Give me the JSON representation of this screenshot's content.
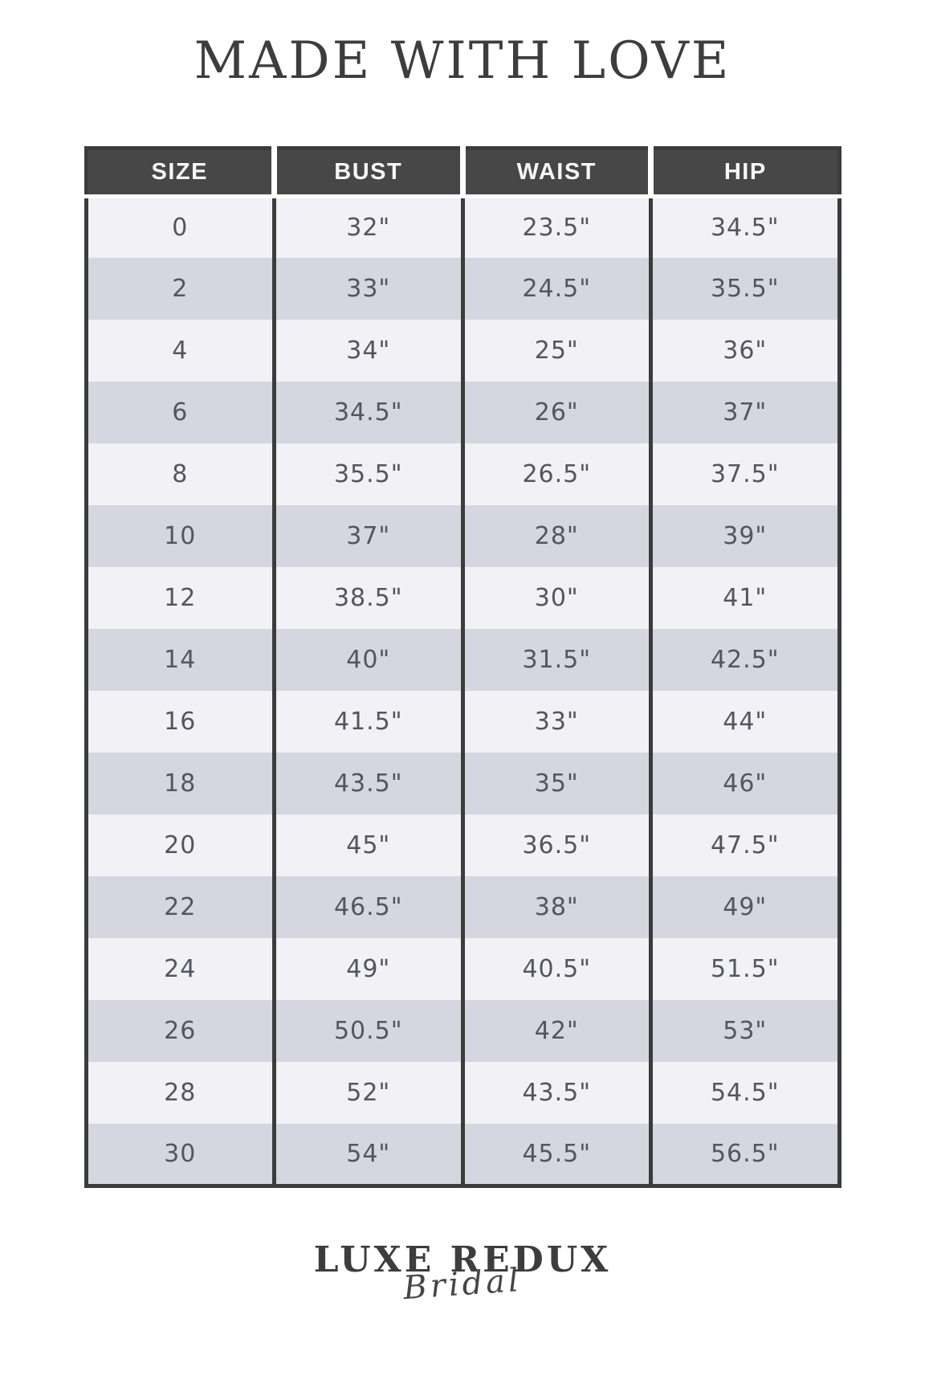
{
  "page": {
    "title": "MADE WITH LOVE",
    "background_color": "#ffffff"
  },
  "table": {
    "columns": [
      "SIZE",
      "BUST",
      "WAIST",
      "HIP"
    ],
    "rows": [
      [
        "0",
        "32\"",
        "23.5\"",
        "34.5\""
      ],
      [
        "2",
        "33\"",
        "24.5\"",
        "35.5\""
      ],
      [
        "4",
        "34\"",
        "25\"",
        "36\""
      ],
      [
        "6",
        "34.5\"",
        "26\"",
        "37\""
      ],
      [
        "8",
        "35.5\"",
        "26.5\"",
        "37.5\""
      ],
      [
        "10",
        "37\"",
        "28\"",
        "39\""
      ],
      [
        "12",
        "38.5\"",
        "30\"",
        "41\""
      ],
      [
        "14",
        "40\"",
        "31.5\"",
        "42.5\""
      ],
      [
        "16",
        "41.5\"",
        "33\"",
        "44\""
      ],
      [
        "18",
        "43.5\"",
        "35\"",
        "46\""
      ],
      [
        "20",
        "45\"",
        "36.5\"",
        "47.5\""
      ],
      [
        "22",
        "46.5\"",
        "38\"",
        "49\""
      ],
      [
        "24",
        "49\"",
        "40.5\"",
        "51.5\""
      ],
      [
        "26",
        "50.5\"",
        "42\"",
        "53\""
      ],
      [
        "28",
        "52\"",
        "43.5\"",
        "54.5\""
      ],
      [
        "30",
        "54\"",
        "45.5\"",
        "56.5\""
      ]
    ],
    "colors": {
      "header_bg": "#474747",
      "header_text": "#f7f7f7",
      "row_light": "#f1f1f6",
      "row_shaded": "#d6d6e1",
      "border": "#3c3c3c",
      "cell_text": "#55555e"
    }
  },
  "logo": {
    "wordmark": "LUXE REDUX",
    "script": "Bridal"
  }
}
